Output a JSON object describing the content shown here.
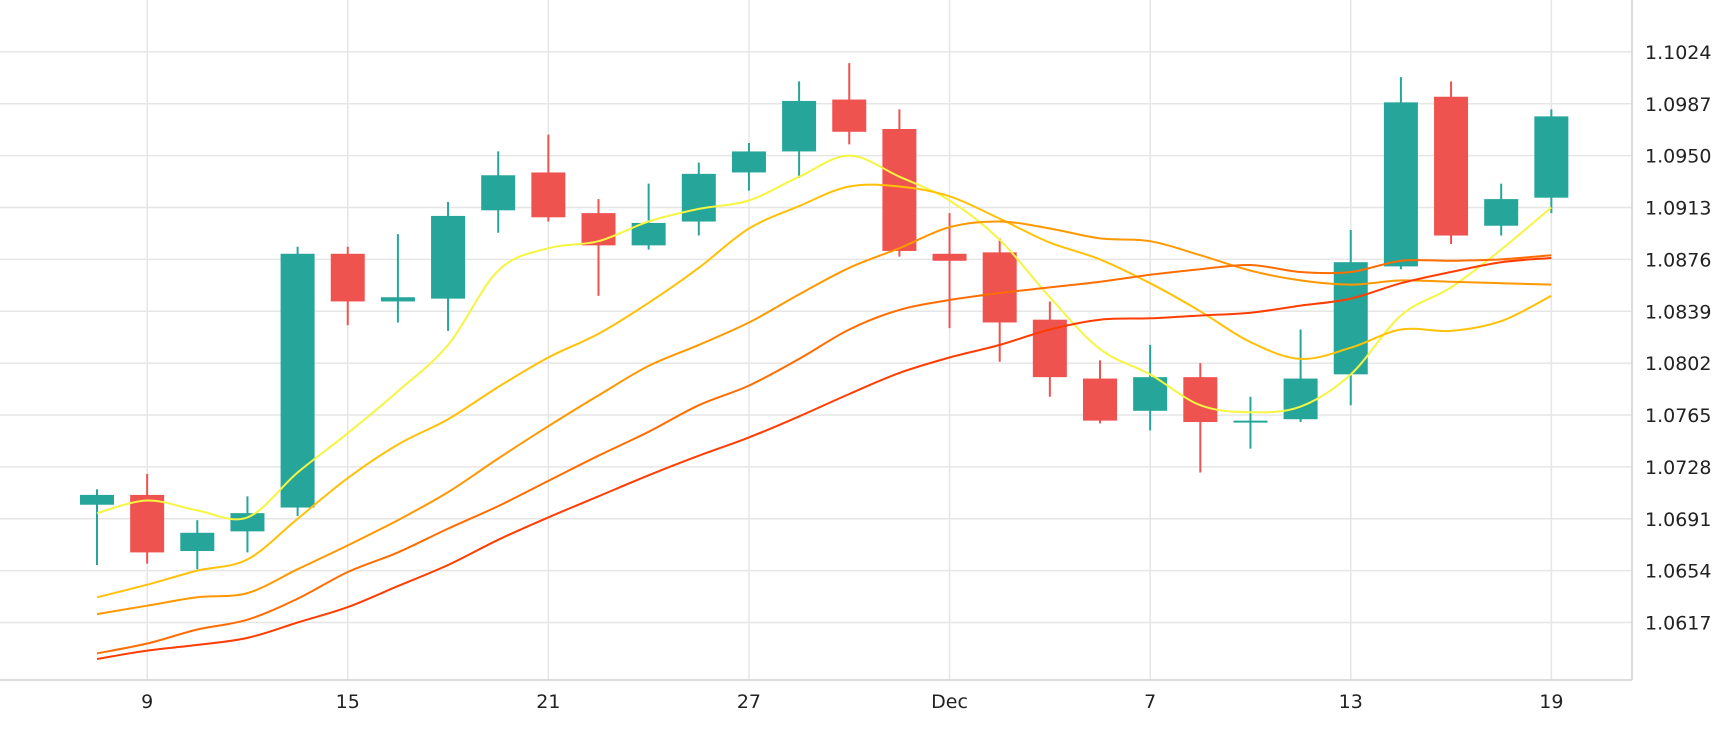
{
  "chart_data": {
    "type": "candlestick",
    "title": "",
    "xlabel": "",
    "ylabel": "",
    "ylim": [
      1.0576,
      1.1061
    ],
    "y_ticks": [
      "1.1024",
      "1.0987",
      "1.0950",
      "1.0913",
      "1.0876",
      "1.0839",
      "1.0802",
      "1.0765",
      "1.0728",
      "1.0691",
      "1.0654",
      "1.0617"
    ],
    "x_ticks": [
      {
        "label": "9",
        "index": 1
      },
      {
        "label": "15",
        "index": 5
      },
      {
        "label": "21",
        "index": 9
      },
      {
        "label": "27",
        "index": 13
      },
      {
        "label": "Dec",
        "index": 17
      },
      {
        "label": "7",
        "index": 21
      },
      {
        "label": "13",
        "index": 25
      },
      {
        "label": "19",
        "index": 29
      }
    ],
    "grid": true,
    "up_color": "#26a69a",
    "down_color": "#ef5350",
    "candles": [
      {
        "o": 1.0701,
        "h": 1.0712,
        "l": 1.0658,
        "c": 1.0708
      },
      {
        "o": 1.0708,
        "h": 1.0723,
        "l": 1.0659,
        "c": 1.0667
      },
      {
        "o": 1.0668,
        "h": 1.069,
        "l": 1.0655,
        "c": 1.0681
      },
      {
        "o": 1.0682,
        "h": 1.0707,
        "l": 1.0667,
        "c": 1.0695
      },
      {
        "o": 1.0699,
        "h": 1.0885,
        "l": 1.0693,
        "c": 1.088
      },
      {
        "o": 1.088,
        "h": 1.0885,
        "l": 1.0829,
        "c": 1.0846
      },
      {
        "o": 1.0846,
        "h": 1.0894,
        "l": 1.0831,
        "c": 1.0849
      },
      {
        "o": 1.0848,
        "h": 1.0917,
        "l": 1.0825,
        "c": 1.0907
      },
      {
        "o": 1.0911,
        "h": 1.0953,
        "l": 1.0895,
        "c": 1.0936
      },
      {
        "o": 1.0938,
        "h": 1.0965,
        "l": 1.0903,
        "c": 1.0906
      },
      {
        "o": 1.0909,
        "h": 1.0919,
        "l": 1.085,
        "c": 1.0886
      },
      {
        "o": 1.0886,
        "h": 1.093,
        "l": 1.0883,
        "c": 1.0902
      },
      {
        "o": 1.0903,
        "h": 1.0945,
        "l": 1.0893,
        "c": 1.0937
      },
      {
        "o": 1.0938,
        "h": 1.0959,
        "l": 1.0925,
        "c": 1.0953
      },
      {
        "o": 1.0953,
        "h": 1.1003,
        "l": 1.0934,
        "c": 1.0989
      },
      {
        "o": 1.099,
        "h": 1.1016,
        "l": 1.0958,
        "c": 1.0967
      },
      {
        "o": 1.0969,
        "h": 1.0983,
        "l": 1.0878,
        "c": 1.0882
      },
      {
        "o": 1.088,
        "h": 1.0909,
        "l": 1.0827,
        "c": 1.0875
      },
      {
        "o": 1.0881,
        "h": 1.0891,
        "l": 1.0803,
        "c": 1.0831
      },
      {
        "o": 1.0833,
        "h": 1.0846,
        "l": 1.0778,
        "c": 1.0792
      },
      {
        "o": 1.0791,
        "h": 1.0804,
        "l": 1.0759,
        "c": 1.0761
      },
      {
        "o": 1.0768,
        "h": 1.0815,
        "l": 1.0754,
        "c": 1.0792
      },
      {
        "o": 1.0792,
        "h": 1.0802,
        "l": 1.0724,
        "c": 1.076
      },
      {
        "o": 1.0761,
        "h": 1.0778,
        "l": 1.0741,
        "c": 1.0761
      },
      {
        "o": 1.0762,
        "h": 1.0826,
        "l": 1.076,
        "c": 1.0791
      },
      {
        "o": 1.0794,
        "h": 1.0897,
        "l": 1.0772,
        "c": 1.0874
      },
      {
        "o": 1.0871,
        "h": 1.1006,
        "l": 1.0869,
        "c": 1.0988
      },
      {
        "o": 1.0992,
        "h": 1.1003,
        "l": 1.0887,
        "c": 1.0893
      },
      {
        "o": 1.09,
        "h": 1.093,
        "l": 1.0893,
        "c": 1.0919
      },
      {
        "o": 1.092,
        "h": 1.0983,
        "l": 1.0909,
        "c": 1.0978
      }
    ],
    "series": [
      {
        "color": "#f5f542",
        "values": [
          1.0695,
          1.0704,
          1.0697,
          1.0692,
          1.0724,
          1.0752,
          1.0782,
          1.0815,
          1.0868,
          1.0884,
          1.0889,
          1.0903,
          1.0912,
          1.0918,
          1.0935,
          1.095,
          1.0935,
          1.0918,
          1.089,
          1.0849,
          1.0812,
          1.0794,
          1.0772,
          1.0767,
          1.0771,
          1.0794,
          1.0836,
          1.0856,
          1.0883,
          1.0913
        ]
      },
      {
        "color": "#ffc107",
        "values": [
          1.0635,
          1.0644,
          1.0654,
          1.0662,
          1.0691,
          1.072,
          1.0744,
          1.0762,
          1.0785,
          1.0806,
          1.0823,
          1.0845,
          1.087,
          1.0898,
          1.0914,
          1.0928,
          1.0928,
          1.0921,
          1.0905,
          1.0888,
          1.0876,
          1.0859,
          1.0839,
          1.0817,
          1.0805,
          1.0813,
          1.0826,
          1.0825,
          1.0832,
          1.085
        ]
      },
      {
        "color": "#ff9800",
        "values": [
          1.0623,
          1.0629,
          1.0635,
          1.0638,
          1.0655,
          1.0672,
          1.069,
          1.071,
          1.0734,
          1.0757,
          1.0779,
          1.08,
          1.0815,
          1.0831,
          1.0851,
          1.087,
          1.0884,
          1.0899,
          1.0903,
          1.0898,
          1.0891,
          1.0889,
          1.0879,
          1.0868,
          1.0861,
          1.0858,
          1.0861,
          1.086,
          1.0859,
          1.0858
        ]
      },
      {
        "color": "#ff6d00",
        "values": [
          1.0595,
          1.0602,
          1.0612,
          1.0619,
          1.0634,
          1.0653,
          1.0667,
          1.0684,
          1.07,
          1.0718,
          1.0736,
          1.0753,
          1.0772,
          1.0786,
          1.0805,
          1.0826,
          1.084,
          1.0847,
          1.0852,
          1.0856,
          1.086,
          1.0865,
          1.0869,
          1.0872,
          1.0867,
          1.0867,
          1.0875,
          1.0875,
          1.0876,
          1.0879
        ]
      },
      {
        "color": "#ff3d00",
        "values": [
          1.0591,
          1.0597,
          1.0601,
          1.0606,
          1.0617,
          1.0628,
          1.0643,
          1.0658,
          1.0676,
          1.0692,
          1.0707,
          1.0722,
          1.0736,
          1.0749,
          1.0764,
          1.078,
          1.0795,
          1.0806,
          1.0815,
          1.0826,
          1.0833,
          1.0834,
          1.0836,
          1.0838,
          1.0843,
          1.0848,
          1.0859,
          1.0867,
          1.0874,
          1.0877
        ]
      }
    ]
  }
}
